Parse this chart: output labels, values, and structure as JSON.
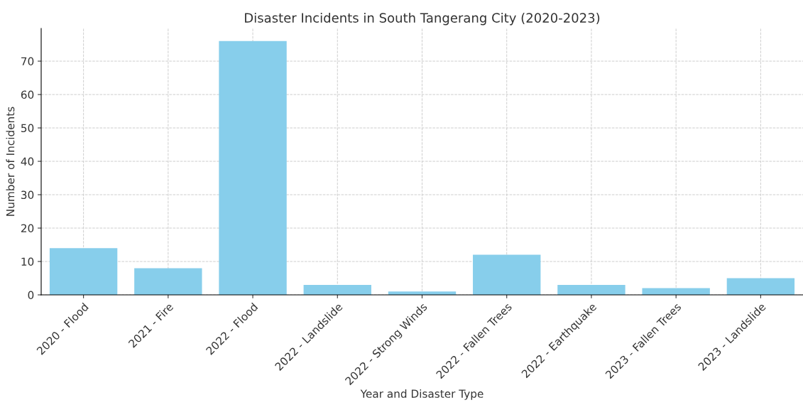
{
  "chart_data": {
    "type": "bar",
    "title": "Disaster Incidents in South Tangerang City (2020-2023)",
    "xlabel": "Year and Disaster Type",
    "ylabel": "Number of Incidents",
    "categories": [
      "2020 - Flood",
      "2021 - Fire",
      "2022 - Flood",
      "2022 - Landslide",
      "2022 - Strong Winds",
      "2022 - Fallen Trees",
      "2022 - Earthquake",
      "2023 - Fallen Trees",
      "2023 - Landslide"
    ],
    "values": [
      14,
      8,
      76,
      3,
      1,
      12,
      3,
      2,
      5
    ],
    "color": "#87ceeb",
    "ylim": [
      0,
      79.8
    ],
    "yticks": [
      0,
      10,
      20,
      30,
      40,
      50,
      60,
      70
    ],
    "grid": true
  }
}
